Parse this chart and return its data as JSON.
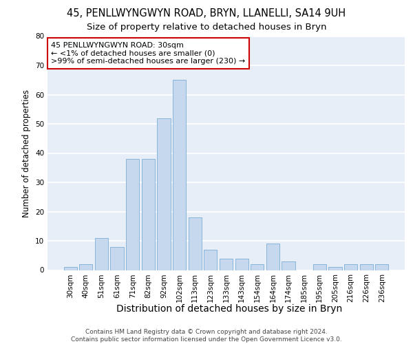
{
  "title": "45, PENLLWYNGWYN ROAD, BRYN, LLANELLI, SA14 9UH",
  "subtitle": "Size of property relative to detached houses in Bryn",
  "xlabel": "Distribution of detached houses by size in Bryn",
  "ylabel": "Number of detached properties",
  "categories": [
    "30sqm",
    "40sqm",
    "51sqm",
    "61sqm",
    "71sqm",
    "82sqm",
    "92sqm",
    "102sqm",
    "113sqm",
    "123sqm",
    "133sqm",
    "143sqm",
    "154sqm",
    "164sqm",
    "174sqm",
    "185sqm",
    "195sqm",
    "205sqm",
    "216sqm",
    "226sqm",
    "236sqm"
  ],
  "values": [
    1,
    2,
    11,
    8,
    38,
    38,
    52,
    65,
    18,
    7,
    4,
    4,
    2,
    9,
    3,
    0,
    2,
    1,
    2,
    2,
    2
  ],
  "bar_color": "#c5d8ee",
  "bar_edge_color": "#7aadd4",
  "ylim": [
    0,
    80
  ],
  "yticks": [
    0,
    10,
    20,
    30,
    40,
    50,
    60,
    70,
    80
  ],
  "annotation_text": "45 PENLLWYNGWYN ROAD: 30sqm\n← <1% of detached houses are smaller (0)\n>99% of semi-detached houses are larger (230) →",
  "annotation_box_color": "#ffffff",
  "annotation_box_edge": "#cc0000",
  "footer_text": "Contains HM Land Registry data © Crown copyright and database right 2024.\nContains public sector information licensed under the Open Government Licence v3.0.",
  "bg_color": "#e8eef7",
  "grid_color": "#ffffff",
  "title_fontsize": 10.5,
  "subtitle_fontsize": 9.5,
  "xlabel_fontsize": 10,
  "ylabel_fontsize": 8.5,
  "tick_fontsize": 7.5,
  "footer_fontsize": 6.5,
  "annot_fontsize": 8
}
